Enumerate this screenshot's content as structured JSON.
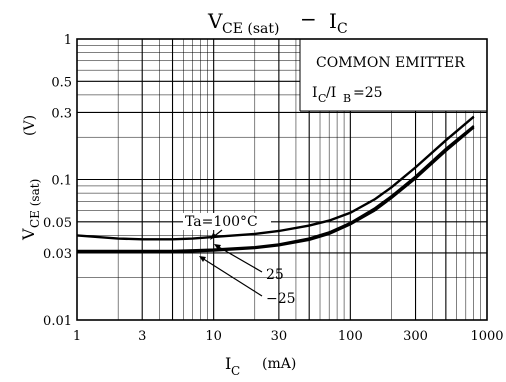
{
  "chart_data": {
    "type": "line",
    "title": {
      "main": "V",
      "main_sub": "CE (sat)",
      "dash": "−",
      "right": "I",
      "right_sub": "C"
    },
    "xlabel": {
      "main": "I",
      "sub": "C",
      "unit": "(mA)"
    },
    "ylabel": {
      "main": "V",
      "sub": "CE (sat)",
      "unit": "(V)"
    },
    "x_scale": "log",
    "y_scale": "log",
    "xlim": [
      1,
      1000
    ],
    "ylim": [
      0.01,
      1
    ],
    "x_ticks": [
      {
        "value": 1,
        "label": "1"
      },
      {
        "value": 3,
        "label": "3"
      },
      {
        "value": 10,
        "label": "10"
      },
      {
        "value": 30,
        "label": "30"
      },
      {
        "value": 100,
        "label": "100"
      },
      {
        "value": 300,
        "label": "300"
      },
      {
        "value": 1000,
        "label": "1000"
      }
    ],
    "y_ticks": [
      {
        "value": 0.01,
        "label": "0.01"
      },
      {
        "value": 0.03,
        "label": "0.03"
      },
      {
        "value": 0.05,
        "label": "0.05"
      },
      {
        "value": 0.1,
        "label": "0.1"
      },
      {
        "value": 0.3,
        "label": "0.3"
      },
      {
        "value": 0.5,
        "label": "0.5"
      },
      {
        "value": 1,
        "label": "1"
      }
    ],
    "grid": true,
    "annotation": {
      "line1": "COMMON EMITTER",
      "line2_main": "I",
      "line2_sub1": "C",
      "line2_mid": "/I",
      "line2_sub2": "B",
      "line2_end": "=25"
    },
    "series": [
      {
        "name": "Ta=100°C",
        "x": [
          1,
          2,
          3,
          5,
          7,
          10,
          20,
          30,
          50,
          70,
          100,
          150,
          200,
          300,
          500,
          800
        ],
        "y": [
          0.04,
          0.038,
          0.0375,
          0.0375,
          0.038,
          0.039,
          0.041,
          0.043,
          0.047,
          0.051,
          0.058,
          0.072,
          0.088,
          0.122,
          0.19,
          0.28
        ]
      },
      {
        "name": "25",
        "x": [
          1,
          2,
          3,
          5,
          7,
          10,
          20,
          30,
          50,
          70,
          100,
          150,
          200,
          300,
          500,
          800
        ],
        "y": [
          0.031,
          0.031,
          0.031,
          0.031,
          0.0313,
          0.0317,
          0.033,
          0.0345,
          0.038,
          0.042,
          0.049,
          0.062,
          0.076,
          0.105,
          0.165,
          0.24
        ]
      },
      {
        "name": "−25",
        "x": [
          1,
          2,
          3,
          5,
          7,
          10,
          20,
          30,
          50,
          70,
          100,
          150,
          200,
          300,
          500,
          800
        ],
        "y": [
          0.0305,
          0.0305,
          0.0305,
          0.0305,
          0.0308,
          0.0312,
          0.0325,
          0.034,
          0.0372,
          0.041,
          0.048,
          0.06,
          0.074,
          0.102,
          0.16,
          0.235
        ]
      }
    ],
    "series_labels": {
      "ta100": "Ta=100°C",
      "t25": "25",
      "tm25": "−25"
    }
  }
}
